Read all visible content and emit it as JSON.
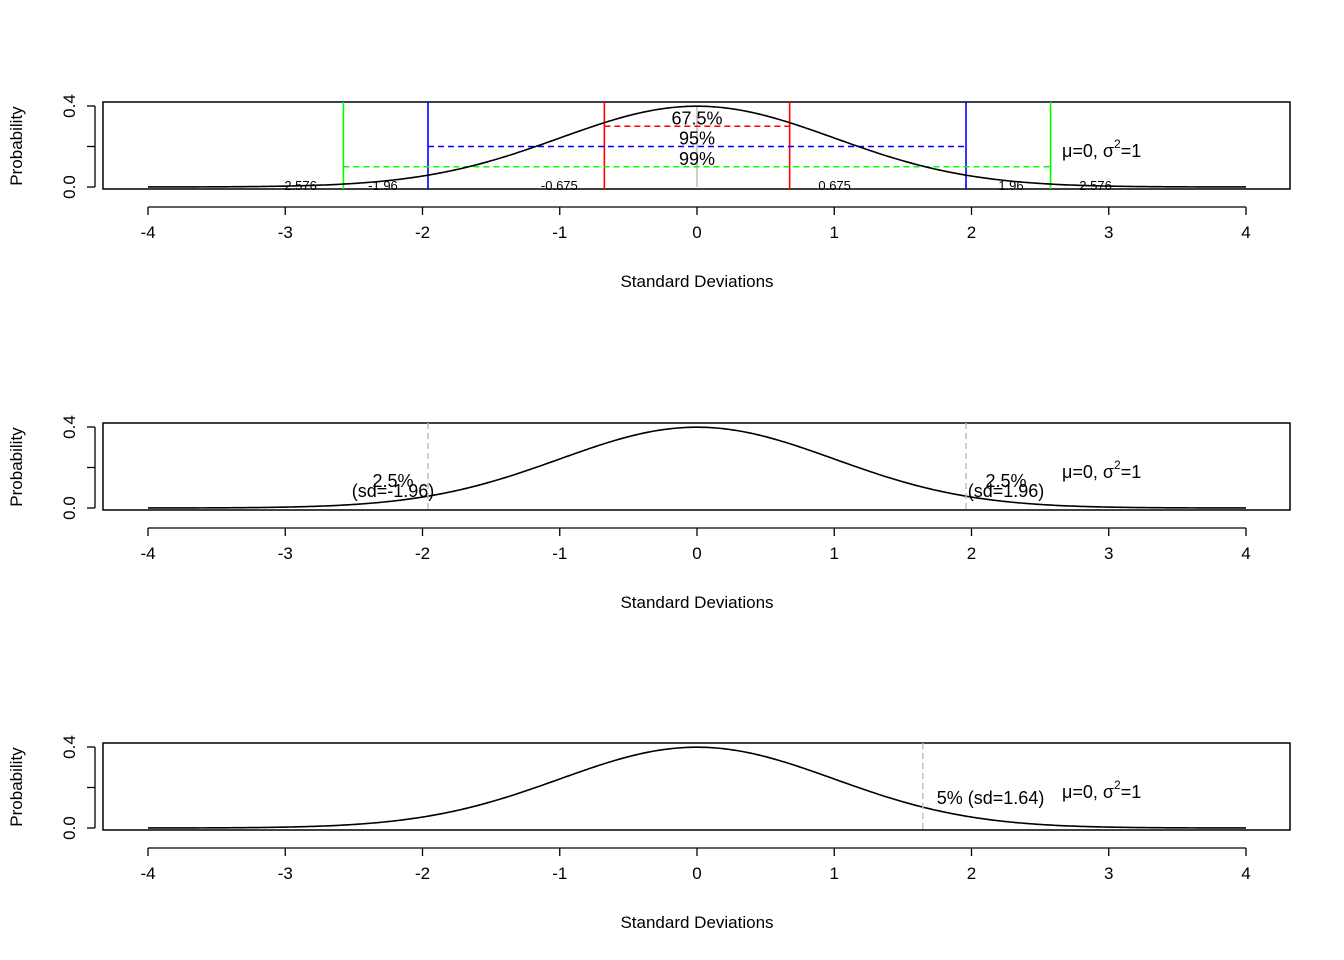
{
  "chart_data": [
    {
      "type": "line",
      "function": "standard normal density",
      "x_range": [
        -4,
        4
      ],
      "xlabel": "Standard Deviations",
      "ylabel": "Probability",
      "xticks": [
        "-4",
        "-3",
        "-2",
        "-1",
        "0",
        "1",
        "2",
        "3",
        "4"
      ],
      "yticks": [
        "0.0",
        "0.4"
      ],
      "ylim": [
        0,
        0.4
      ],
      "params_label": {
        "mu": "μ=0, ",
        "sigma": "σ",
        "sup": "2",
        "tail": "=1"
      },
      "intervals": [
        {
          "pct_label": "67.5%",
          "z": 0.675,
          "y": 0.3,
          "color": "#ff0000",
          "lo_label": "-0.675",
          "hi_label": "0.675"
        },
        {
          "pct_label": "95%",
          "z": 1.96,
          "y": 0.2,
          "color": "#0000ff",
          "lo_label": "-1.96",
          "hi_label": "1.96"
        },
        {
          "pct_label": "99%",
          "z": 2.576,
          "y": 0.1,
          "color": "#00ff00",
          "lo_label": "-2.576",
          "hi_label": "2.576"
        }
      ]
    },
    {
      "type": "line",
      "function": "standard normal density",
      "x_range": [
        -4,
        4
      ],
      "xlabel": "Standard Deviations",
      "ylabel": "Probability",
      "xticks": [
        "-4",
        "-3",
        "-2",
        "-1",
        "0",
        "1",
        "2",
        "3",
        "4"
      ],
      "yticks": [
        "0.0",
        "0.4"
      ],
      "ylim": [
        0,
        0.4
      ],
      "params_label": {
        "mu": "μ=0, ",
        "sigma": "σ",
        "sup": "2",
        "tail": "=1"
      },
      "cutoffs": [
        {
          "x": -1.96,
          "pct_label": "2.5%",
          "sd_label": "(sd=-1.96)"
        },
        {
          "x": 1.96,
          "pct_label": "2.5%",
          "sd_label": "(sd=1.96)"
        }
      ]
    },
    {
      "type": "line",
      "function": "standard normal density",
      "x_range": [
        -4,
        4
      ],
      "xlabel": "Standard Deviations",
      "ylabel": "Probability",
      "xticks": [
        "-4",
        "-3",
        "-2",
        "-1",
        "0",
        "1",
        "2",
        "3",
        "4"
      ],
      "yticks": [
        "0.0",
        "0.4"
      ],
      "ylim": [
        0,
        0.4
      ],
      "params_label": {
        "mu": "μ=0, ",
        "sigma": "σ",
        "sup": "2",
        "tail": "=1"
      },
      "cutoffs": [
        {
          "x": 1.645,
          "pct_label": "5% (sd=1.64)"
        }
      ]
    }
  ]
}
